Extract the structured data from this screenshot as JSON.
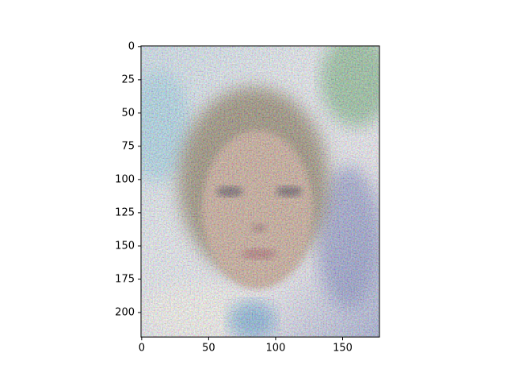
{
  "chart_data": {
    "type": "image",
    "xlim": [
      -0.5,
      177.5
    ],
    "ylim": [
      218.5,
      -0.5
    ],
    "xticks": [
      0,
      50,
      100,
      150
    ],
    "yticks": [
      0,
      25,
      50,
      75,
      100,
      125,
      150,
      175,
      200
    ]
  }
}
